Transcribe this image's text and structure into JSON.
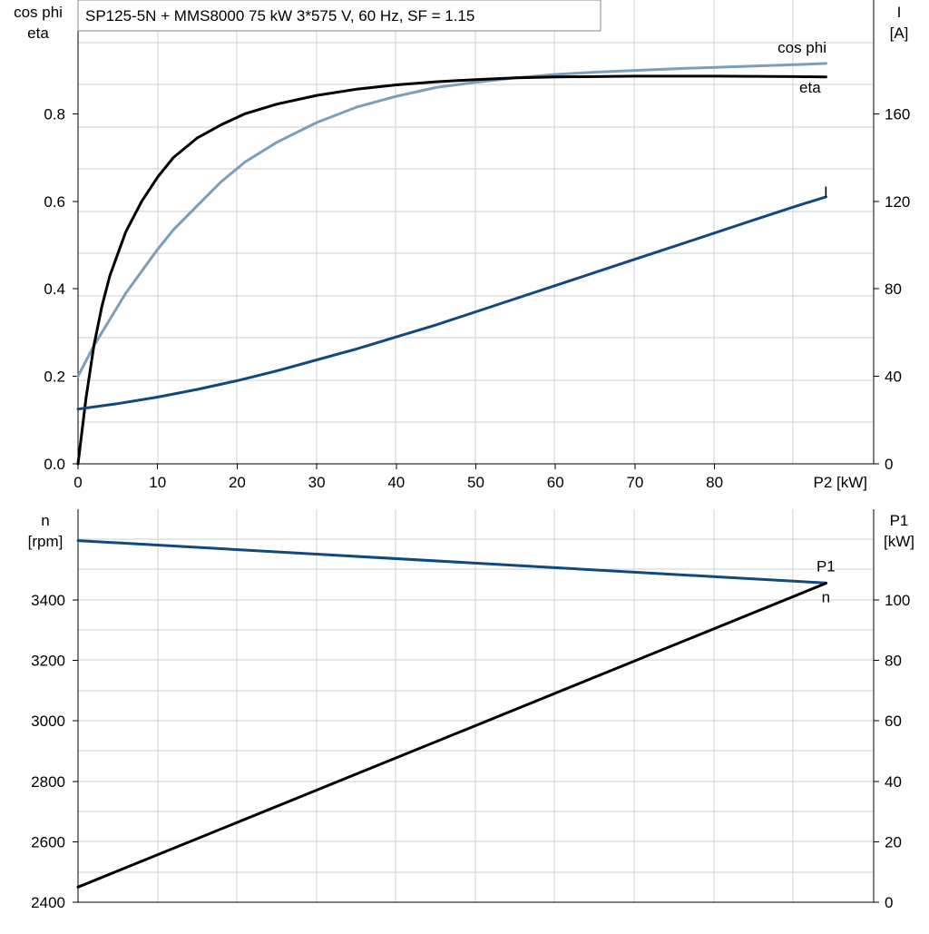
{
  "title": "SP125-5N + MMS8000   75 kW   3*575 V, 60 Hz, SF = 1.15",
  "colors": {
    "eta": "#000000",
    "cos_phi": "#7a9fbd",
    "I": "#0f4a7f",
    "n": "#0f4a7f",
    "P1": "#000000",
    "grid": "#cfcfcf"
  },
  "chart_data": [
    {
      "type": "line",
      "name": "efficiency",
      "x": {
        "label": "P2 [kW]",
        "range": [
          0,
          100
        ],
        "ticks": [
          "0",
          "10",
          "20",
          "30",
          "40",
          "50",
          "60",
          "70",
          "80"
        ]
      },
      "y_left": {
        "label": [
          "cos phi",
          "eta"
        ],
        "range": [
          0,
          1.06
        ],
        "ticks": [
          "0.0",
          "0.2",
          "0.4",
          "0.6",
          "0.8"
        ]
      },
      "y_right": {
        "label": [
          "I",
          "[A]"
        ],
        "range": [
          0,
          212
        ],
        "ticks": [
          "0",
          "40",
          "80",
          "120",
          "160"
        ]
      },
      "grid": true,
      "series": [
        {
          "name": "cos phi",
          "axis": "left",
          "label_at": [
            91,
            0.94
          ],
          "points": [
            [
              0,
              0.2
            ],
            [
              2,
              0.27
            ],
            [
              4,
              0.33
            ],
            [
              6,
              0.39
            ],
            [
              8,
              0.44
            ],
            [
              10,
              0.49
            ],
            [
              12,
              0.535
            ],
            [
              15,
              0.59
            ],
            [
              18,
              0.645
            ],
            [
              21,
              0.69
            ],
            [
              25,
              0.735
            ],
            [
              30,
              0.78
            ],
            [
              35,
              0.815
            ],
            [
              40,
              0.84
            ],
            [
              45,
              0.86
            ],
            [
              50,
              0.872
            ],
            [
              55,
              0.882
            ],
            [
              60,
              0.89
            ],
            [
              65,
              0.895
            ],
            [
              70,
              0.899
            ],
            [
              75,
              0.903
            ],
            [
              80,
              0.906
            ],
            [
              85,
              0.909
            ],
            [
              90,
              0.912
            ],
            [
              94,
              0.915
            ]
          ]
        },
        {
          "name": "eta",
          "axis": "left",
          "label_at": [
            92,
            0.848
          ],
          "points": [
            [
              0,
              0
            ],
            [
              1,
              0.15
            ],
            [
              2,
              0.27
            ],
            [
              3,
              0.36
            ],
            [
              4,
              0.43
            ],
            [
              6,
              0.53
            ],
            [
              8,
              0.6
            ],
            [
              10,
              0.655
            ],
            [
              12,
              0.7
            ],
            [
              15,
              0.745
            ],
            [
              18,
              0.775
            ],
            [
              21,
              0.8
            ],
            [
              25,
              0.822
            ],
            [
              30,
              0.842
            ],
            [
              35,
              0.856
            ],
            [
              40,
              0.866
            ],
            [
              45,
              0.873
            ],
            [
              50,
              0.878
            ],
            [
              55,
              0.882
            ],
            [
              60,
              0.884
            ],
            [
              70,
              0.886
            ],
            [
              80,
              0.886
            ],
            [
              90,
              0.885
            ],
            [
              94,
              0.884
            ]
          ]
        },
        {
          "name": "I",
          "axis": "right",
          "label_at": [
            94,
            122
          ],
          "points": [
            [
              0,
              25
            ],
            [
              5,
              27.5
            ],
            [
              10,
              30.5
            ],
            [
              15,
              34
            ],
            [
              20,
              38
            ],
            [
              25,
              42.5
            ],
            [
              30,
              47.5
            ],
            [
              35,
              52.5
            ],
            [
              40,
              58
            ],
            [
              45,
              63.5
            ],
            [
              50,
              69.5
            ],
            [
              55,
              75.5
            ],
            [
              60,
              81.5
            ],
            [
              65,
              87.5
            ],
            [
              70,
              93.5
            ],
            [
              75,
              99.5
            ],
            [
              80,
              105.5
            ],
            [
              85,
              111.5
            ],
            [
              90,
              117.5
            ],
            [
              94,
              122
            ]
          ]
        }
      ]
    },
    {
      "type": "line",
      "name": "speed-and-input-power",
      "x": {
        "label": "",
        "range": [
          0,
          100
        ],
        "ticks": []
      },
      "y_left": {
        "label": [
          "n",
          "[rpm]"
        ],
        "range": [
          2400,
          3700
        ],
        "ticks": [
          "2400",
          "2600",
          "2800",
          "3000",
          "3200",
          "3400"
        ]
      },
      "y_right": {
        "label": [
          "P1",
          "[kW]"
        ],
        "range": [
          0,
          130
        ],
        "ticks": [
          "0",
          "20",
          "40",
          "60",
          "80",
          "100"
        ]
      },
      "grid": true,
      "series": [
        {
          "name": "n",
          "axis": "left",
          "label_at": [
            94,
            3392
          ],
          "points": [
            [
              0,
              3596
            ],
            [
              94,
              3456
            ]
          ]
        },
        {
          "name": "P1",
          "axis": "right",
          "label_at": [
            94,
            109.5
          ],
          "points": [
            [
              0,
              5
            ],
            [
              94,
              105.5
            ]
          ]
        }
      ]
    }
  ]
}
